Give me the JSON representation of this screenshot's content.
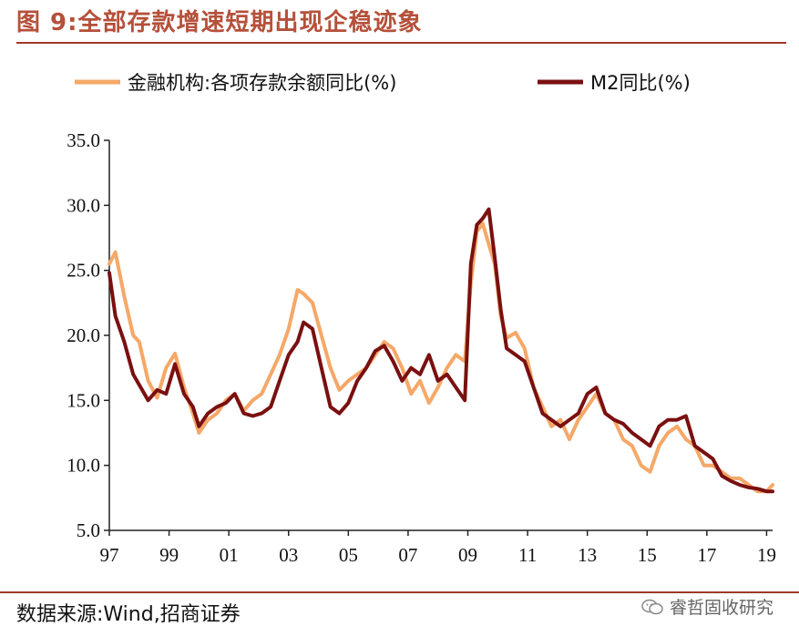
{
  "header": {
    "title": "图 9:全部存款增速短期出现企稳迹象"
  },
  "footer": {
    "source": "数据来源:Wind,招商证券",
    "watermark": "睿哲固收研究"
  },
  "chart_data": {
    "type": "line",
    "title": "",
    "xlabel": "",
    "ylabel": "",
    "ylim": [
      5.0,
      35.0
    ],
    "yticks": [
      "35.0",
      "30.0",
      "25.0",
      "20.0",
      "15.0",
      "10.0",
      "5.0"
    ],
    "xlim": [
      1997.0,
      2019.2
    ],
    "xticks": [
      "97",
      "99",
      "01",
      "03",
      "05",
      "07",
      "09",
      "11",
      "13",
      "15",
      "17",
      "19"
    ],
    "legend_position": "top",
    "grid": false,
    "series": [
      {
        "name": "金融机构:各项存款余额同比(%)",
        "color": "#f5a868",
        "x": [
          1997.0,
          1997.2,
          1997.5,
          1997.8,
          1998.0,
          1998.3,
          1998.6,
          1998.9,
          1999.2,
          1999.5,
          1999.8,
          2000.0,
          2000.3,
          2000.6,
          2000.9,
          2001.2,
          2001.5,
          2001.8,
          2002.1,
          2002.4,
          2002.7,
          2003.0,
          2003.3,
          2003.5,
          2003.8,
          2004.1,
          2004.4,
          2004.7,
          2005.0,
          2005.3,
          2005.6,
          2005.9,
          2006.2,
          2006.5,
          2006.8,
          2007.1,
          2007.4,
          2007.7,
          2008.0,
          2008.3,
          2008.6,
          2008.9,
          2009.1,
          2009.3,
          2009.5,
          2009.7,
          2009.9,
          2010.1,
          2010.3,
          2010.6,
          2010.9,
          2011.2,
          2011.5,
          2011.8,
          2012.1,
          2012.4,
          2012.7,
          2013.0,
          2013.3,
          2013.6,
          2013.9,
          2014.2,
          2014.5,
          2014.8,
          2015.1,
          2015.4,
          2015.7,
          2016.0,
          2016.3,
          2016.6,
          2016.9,
          2017.2,
          2017.5,
          2017.8,
          2018.1,
          2018.4,
          2018.7,
          2019.0,
          2019.2
        ],
        "values": [
          25.5,
          26.4,
          23.0,
          20.0,
          19.5,
          16.5,
          15.2,
          17.5,
          18.6,
          16.0,
          14.0,
          12.5,
          13.5,
          14.0,
          15.0,
          15.5,
          14.2,
          15.0,
          15.5,
          17.0,
          18.5,
          20.5,
          23.5,
          23.2,
          22.5,
          20.0,
          17.5,
          15.8,
          16.5,
          17.0,
          17.5,
          18.5,
          19.5,
          19.0,
          17.5,
          15.5,
          16.5,
          14.8,
          16.0,
          17.5,
          18.5,
          18.0,
          24.0,
          28.0,
          28.6,
          27.0,
          25.5,
          21.5,
          19.8,
          20.2,
          19.0,
          16.0,
          14.5,
          13.0,
          13.5,
          12.0,
          13.5,
          14.5,
          15.5,
          14.0,
          13.5,
          12.0,
          11.5,
          10.0,
          9.5,
          11.5,
          12.5,
          13.0,
          12.0,
          11.5,
          10.0,
          10.0,
          9.5,
          9.0,
          9.0,
          8.5,
          8.0,
          8.0,
          8.5
        ]
      },
      {
        "name": "M2同比(%)",
        "color": "#7a1010",
        "x": [
          1997.0,
          1997.2,
          1997.5,
          1997.8,
          1998.0,
          1998.3,
          1998.6,
          1998.9,
          1999.2,
          1999.5,
          1999.8,
          2000.0,
          2000.3,
          2000.6,
          2000.9,
          2001.2,
          2001.5,
          2001.8,
          2002.1,
          2002.4,
          2002.7,
          2003.0,
          2003.3,
          2003.5,
          2003.8,
          2004.1,
          2004.4,
          2004.7,
          2005.0,
          2005.3,
          2005.6,
          2005.9,
          2006.2,
          2006.5,
          2006.8,
          2007.1,
          2007.4,
          2007.7,
          2008.0,
          2008.3,
          2008.6,
          2008.9,
          2009.1,
          2009.3,
          2009.5,
          2009.7,
          2009.9,
          2010.1,
          2010.3,
          2010.6,
          2010.9,
          2011.2,
          2011.5,
          2011.8,
          2012.1,
          2012.4,
          2012.7,
          2013.0,
          2013.3,
          2013.6,
          2013.9,
          2014.2,
          2014.5,
          2014.8,
          2015.1,
          2015.4,
          2015.7,
          2016.0,
          2016.3,
          2016.6,
          2016.9,
          2017.2,
          2017.5,
          2017.8,
          2018.1,
          2018.4,
          2018.7,
          2019.0,
          2019.2
        ],
        "values": [
          24.8,
          21.5,
          19.5,
          17.0,
          16.2,
          15.0,
          15.8,
          15.5,
          17.8,
          15.5,
          14.5,
          13.0,
          14.0,
          14.5,
          14.8,
          15.5,
          14.0,
          13.8,
          14.0,
          14.5,
          16.5,
          18.5,
          19.5,
          21.0,
          20.5,
          17.5,
          14.5,
          14.0,
          14.8,
          16.5,
          17.5,
          18.8,
          19.2,
          18.0,
          16.5,
          17.5,
          17.0,
          18.5,
          16.5,
          17.0,
          16.0,
          15.0,
          25.5,
          28.5,
          29.0,
          29.7,
          26.0,
          22.0,
          19.0,
          18.5,
          18.0,
          16.0,
          14.0,
          13.5,
          13.0,
          13.5,
          14.0,
          15.5,
          16.0,
          14.0,
          13.5,
          13.2,
          12.5,
          12.0,
          11.5,
          13.0,
          13.5,
          13.5,
          13.8,
          11.5,
          11.0,
          10.5,
          9.2,
          8.8,
          8.5,
          8.3,
          8.2,
          8.0,
          8.0
        ]
      }
    ]
  }
}
